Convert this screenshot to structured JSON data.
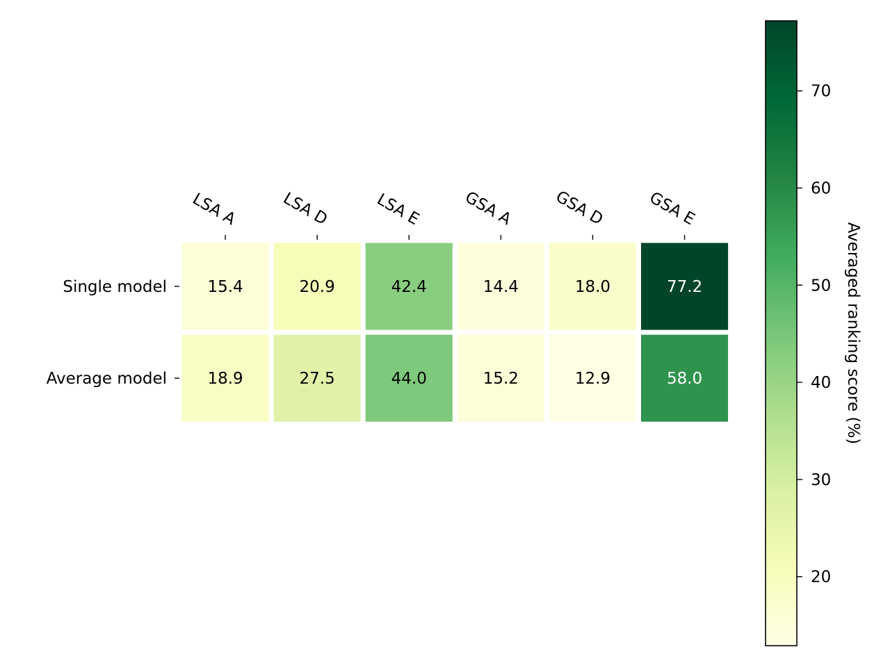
{
  "chart_data": {
    "type": "heatmap",
    "columns": [
      "LSA A",
      "LSA D",
      "LSA E",
      "GSA A",
      "GSA D",
      "GSA E"
    ],
    "rows": [
      "Single model",
      "Average model"
    ],
    "values": [
      [
        15.4,
        20.9,
        42.4,
        14.4,
        18.0,
        77.2
      ],
      [
        18.9,
        27.5,
        44.0,
        15.2,
        12.9,
        58.0
      ]
    ],
    "value_labels": [
      [
        "15.4",
        "20.9",
        "42.4",
        "14.4",
        "18.0",
        "77.2"
      ],
      [
        "18.9",
        "27.5",
        "44.0",
        "15.2",
        "12.9",
        "58.0"
      ]
    ],
    "colorbar": {
      "label": "Averaged ranking score (%)",
      "range": [
        12.9,
        77.2
      ],
      "ticks": [
        20,
        30,
        40,
        50,
        60,
        70
      ],
      "tick_labels": [
        "20",
        "30",
        "40",
        "50",
        "60",
        "70"
      ],
      "colormap": "YlGn",
      "colormap_stops": [
        "#ffffe5",
        "#f7fcb9",
        "#d9f0a3",
        "#addd8e",
        "#78c679",
        "#41ab5d",
        "#238443",
        "#006837",
        "#004529"
      ]
    },
    "x_tick_position": "top",
    "grid": false
  }
}
